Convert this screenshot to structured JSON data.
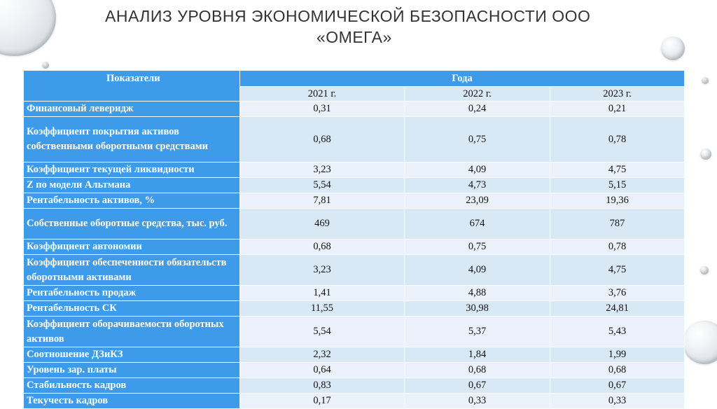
{
  "slide": {
    "title_line1": "АНАЛИЗ УРОВНЯ ЭКОНОМИЧЕСКОЙ БЕЗОПАСНОСТИ ООО",
    "title_line2": "«ОМЕГА»"
  },
  "table": {
    "header_indicator": "Показатели",
    "header_years": "Года",
    "years": [
      "2021 г.",
      "2022 г.",
      "2023 г."
    ],
    "rows": [
      {
        "name": "Финансовый левeридж",
        "values": [
          "0,31",
          "0,24",
          "0,21"
        ]
      },
      {
        "name": "Коэффициент покрытия активов собственными оборотными средствами",
        "values": [
          "0,68",
          "0,75",
          "0,78"
        ]
      },
      {
        "name": "Коэффициент текущей ликвидности",
        "values": [
          "3,23",
          "4,09",
          "4,75"
        ]
      },
      {
        "name": "Z по модели Альтмана",
        "values": [
          "5,54",
          "4,73",
          "5,15"
        ]
      },
      {
        "name": "Рентабельность активов, %",
        "values": [
          "7,81",
          "23,09",
          "19,36"
        ]
      },
      {
        "name": "Собственные оборотные средства, тыс. руб.",
        "values": [
          "469",
          "674",
          "787"
        ]
      },
      {
        "name": "Коэффициент автономии",
        "values": [
          "0,68",
          "0,75",
          "0,78"
        ]
      },
      {
        "name": "Коэффициент обеспеченности обязательств оборотными активами",
        "values": [
          "3,23",
          "4,09",
          "4,75"
        ]
      },
      {
        "name": "Рентабельность продаж",
        "values": [
          "1,41",
          "4,88",
          "3,76"
        ]
      },
      {
        "name": "Рентабельность СК",
        "values": [
          "11,55",
          "30,98",
          "24,81"
        ]
      },
      {
        "name": "Коэффициент оборачиваемости оборотных активов",
        "values": [
          "5,54",
          "5,37",
          "5,43"
        ]
      },
      {
        "name": "Соотношение ДЗиКЗ",
        "values": [
          "2,32",
          "1,84",
          "1,99"
        ]
      },
      {
        "name": "Уровень зар. платы",
        "values": [
          "0,64",
          "0,68",
          "0,68"
        ]
      },
      {
        "name": "Стабильность кадров",
        "values": [
          "0,83",
          "0,67",
          "0,67"
        ]
      },
      {
        "name": "Текучесть кадров",
        "values": [
          "0,17",
          "0,33",
          "0,33"
        ]
      }
    ]
  }
}
